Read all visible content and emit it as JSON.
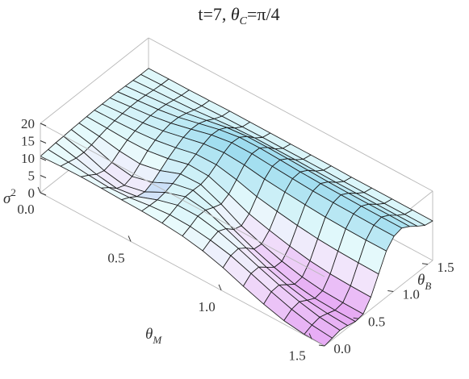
{
  "chart_data": {
    "type": "surface3d",
    "title_parts": {
      "prefix": "t=7, ",
      "theta": "θ",
      "sub": "C",
      "suffix": "=π/4"
    },
    "xlabel": {
      "base": "θ",
      "sub": "M"
    },
    "ylabel": {
      "base": "θ",
      "sub": "B"
    },
    "zlabel": {
      "base": "σ",
      "sup": "2"
    },
    "xlim": [
      0,
      1.5708
    ],
    "ylim": [
      0,
      1.5708
    ],
    "zlim": [
      0,
      20
    ],
    "x_ticks": [
      {
        "v": 0.0,
        "label": "0.0"
      },
      {
        "v": 0.5,
        "label": "0.5"
      },
      {
        "v": 1.0,
        "label": "1.0"
      },
      {
        "v": 1.5,
        "label": "1.5"
      }
    ],
    "y_ticks": [
      {
        "v": 0.0,
        "label": "0.0"
      },
      {
        "v": 0.5,
        "label": "0.5"
      },
      {
        "v": 1.0,
        "label": "1.0"
      },
      {
        "v": 1.5,
        "label": "1.5"
      }
    ],
    "z_ticks": [
      {
        "v": 0,
        "label": "0"
      },
      {
        "v": 5,
        "label": "5"
      },
      {
        "v": 10,
        "label": "10"
      },
      {
        "v": 15,
        "label": "15"
      },
      {
        "v": 20,
        "label": "20"
      }
    ],
    "grid_n": 15,
    "surface_z": [
      [
        10.5,
        10.7,
        10.9,
        11.0,
        11.2,
        11.3,
        11.4,
        11.5,
        11.5,
        11.5,
        11.5,
        11.4,
        11.3,
        11.2,
        11.2
      ],
      [
        10.8,
        10.2,
        9.6,
        9.5,
        9.9,
        10.6,
        11.2,
        11.6,
        11.9,
        12.1,
        12.1,
        11.9,
        11.6,
        11.4,
        11.3
      ],
      [
        10.9,
        9.6,
        8.1,
        7.4,
        8.0,
        9.5,
        10.9,
        11.8,
        12.4,
        12.7,
        12.7,
        12.4,
        11.9,
        11.5,
        11.3
      ],
      [
        10.8,
        9.2,
        7.2,
        6.3,
        7.1,
        9.0,
        11.0,
        12.3,
        13.2,
        13.7,
        13.6,
        13.0,
        12.2,
        11.6,
        11.4
      ],
      [
        10.6,
        9.5,
        8.0,
        7.6,
        8.6,
        10.2,
        11.9,
        13.3,
        14.5,
        15.1,
        15.0,
        14.1,
        12.8,
        11.8,
        11.5
      ],
      [
        10.5,
        10.3,
        10.2,
        10.6,
        11.4,
        12.4,
        13.4,
        14.6,
        15.8,
        16.6,
        16.4,
        15.2,
        13.3,
        11.9,
        11.5
      ],
      [
        10.2,
        10.8,
        11.8,
        12.5,
        12.6,
        12.5,
        13.2,
        14.7,
        16.4,
        17.5,
        17.3,
        15.8,
        13.6,
        12.0,
        11.5
      ],
      [
        9.6,
        10.6,
        11.8,
        11.8,
        10.8,
        10.0,
        11.1,
        13.5,
        16.0,
        17.5,
        17.4,
        15.8,
        13.6,
        12.0,
        11.5
      ],
      [
        8.5,
        9.8,
        10.6,
        9.6,
        7.6,
        6.9,
        8.6,
        11.8,
        15.1,
        17.0,
        17.1,
        15.7,
        13.6,
        12.0,
        11.5
      ],
      [
        6.8,
        8.5,
        8.8,
        7.2,
        5.1,
        4.8,
        7.0,
        10.7,
        14.5,
        16.6,
        16.8,
        15.5,
        13.5,
        12.0,
        11.5
      ],
      [
        4.6,
        6.5,
        6.6,
        4.8,
        3.0,
        3.0,
        5.6,
        9.8,
        14.0,
        16.2,
        16.6,
        15.3,
        13.4,
        11.9,
        11.4
      ],
      [
        2.6,
        4.4,
        4.6,
        2.9,
        1.3,
        1.6,
        4.5,
        9.1,
        13.6,
        16.0,
        16.5,
        15.2,
        13.4,
        11.9,
        11.4
      ],
      [
        1.0,
        2.5,
        2.9,
        1.6,
        0.4,
        0.8,
        3.9,
        8.7,
        13.4,
        15.9,
        16.4,
        15.2,
        13.4,
        11.9,
        11.4
      ],
      [
        0.2,
        1.1,
        1.6,
        0.9,
        0.1,
        0.5,
        3.6,
        8.5,
        13.3,
        15.8,
        16.4,
        15.2,
        13.4,
        11.9,
        11.4
      ],
      [
        0.0,
        0.5,
        1.0,
        0.6,
        0.0,
        0.4,
        3.5,
        8.4,
        13.3,
        15.8,
        16.4,
        15.1,
        13.4,
        11.9,
        11.4
      ]
    ],
    "colors": {
      "low": "#e6a8f4",
      "mid_low": "#f2e4fb",
      "mid": "#e8fbfc",
      "high": "#9edcef",
      "dip": "#7fa6ec",
      "mesh": "#1a1a1a",
      "box": "#b8b8b8"
    }
  }
}
